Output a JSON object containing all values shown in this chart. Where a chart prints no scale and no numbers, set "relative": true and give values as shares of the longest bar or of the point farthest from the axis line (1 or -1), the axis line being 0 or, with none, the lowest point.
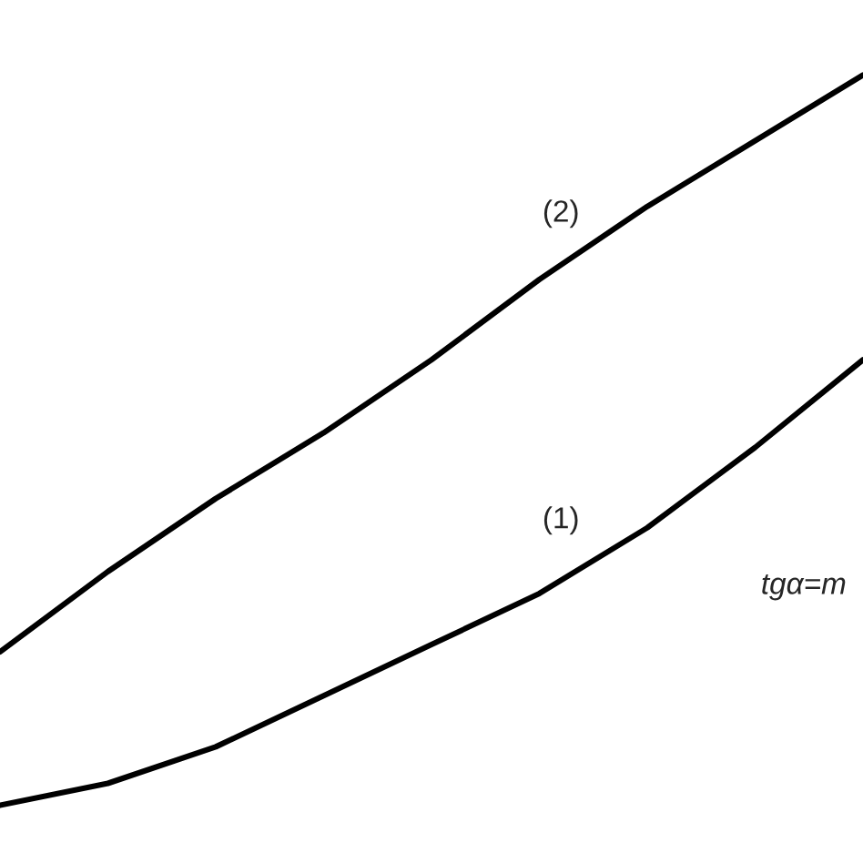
{
  "chart_data": {
    "type": "line",
    "relative": true,
    "categories": [
      null,
      null,
      null,
      null,
      null,
      null,
      null,
      null,
      null
    ],
    "series": [
      {
        "name": "(1)",
        "color": "#000000",
        "values": [
          0,
          0.03,
          0.08,
          0.15,
          0.22,
          0.29,
          0.38,
          0.49,
          0.61
        ]
      },
      {
        "name": "(2)",
        "color": "#000000",
        "values": [
          0.21,
          0.32,
          0.42,
          0.51,
          0.61,
          0.72,
          0.82,
          0.91,
          1.0
        ]
      }
    ],
    "annotations": [
      "tgα=m"
    ],
    "marker": "none",
    "line_style": "solid"
  }
}
